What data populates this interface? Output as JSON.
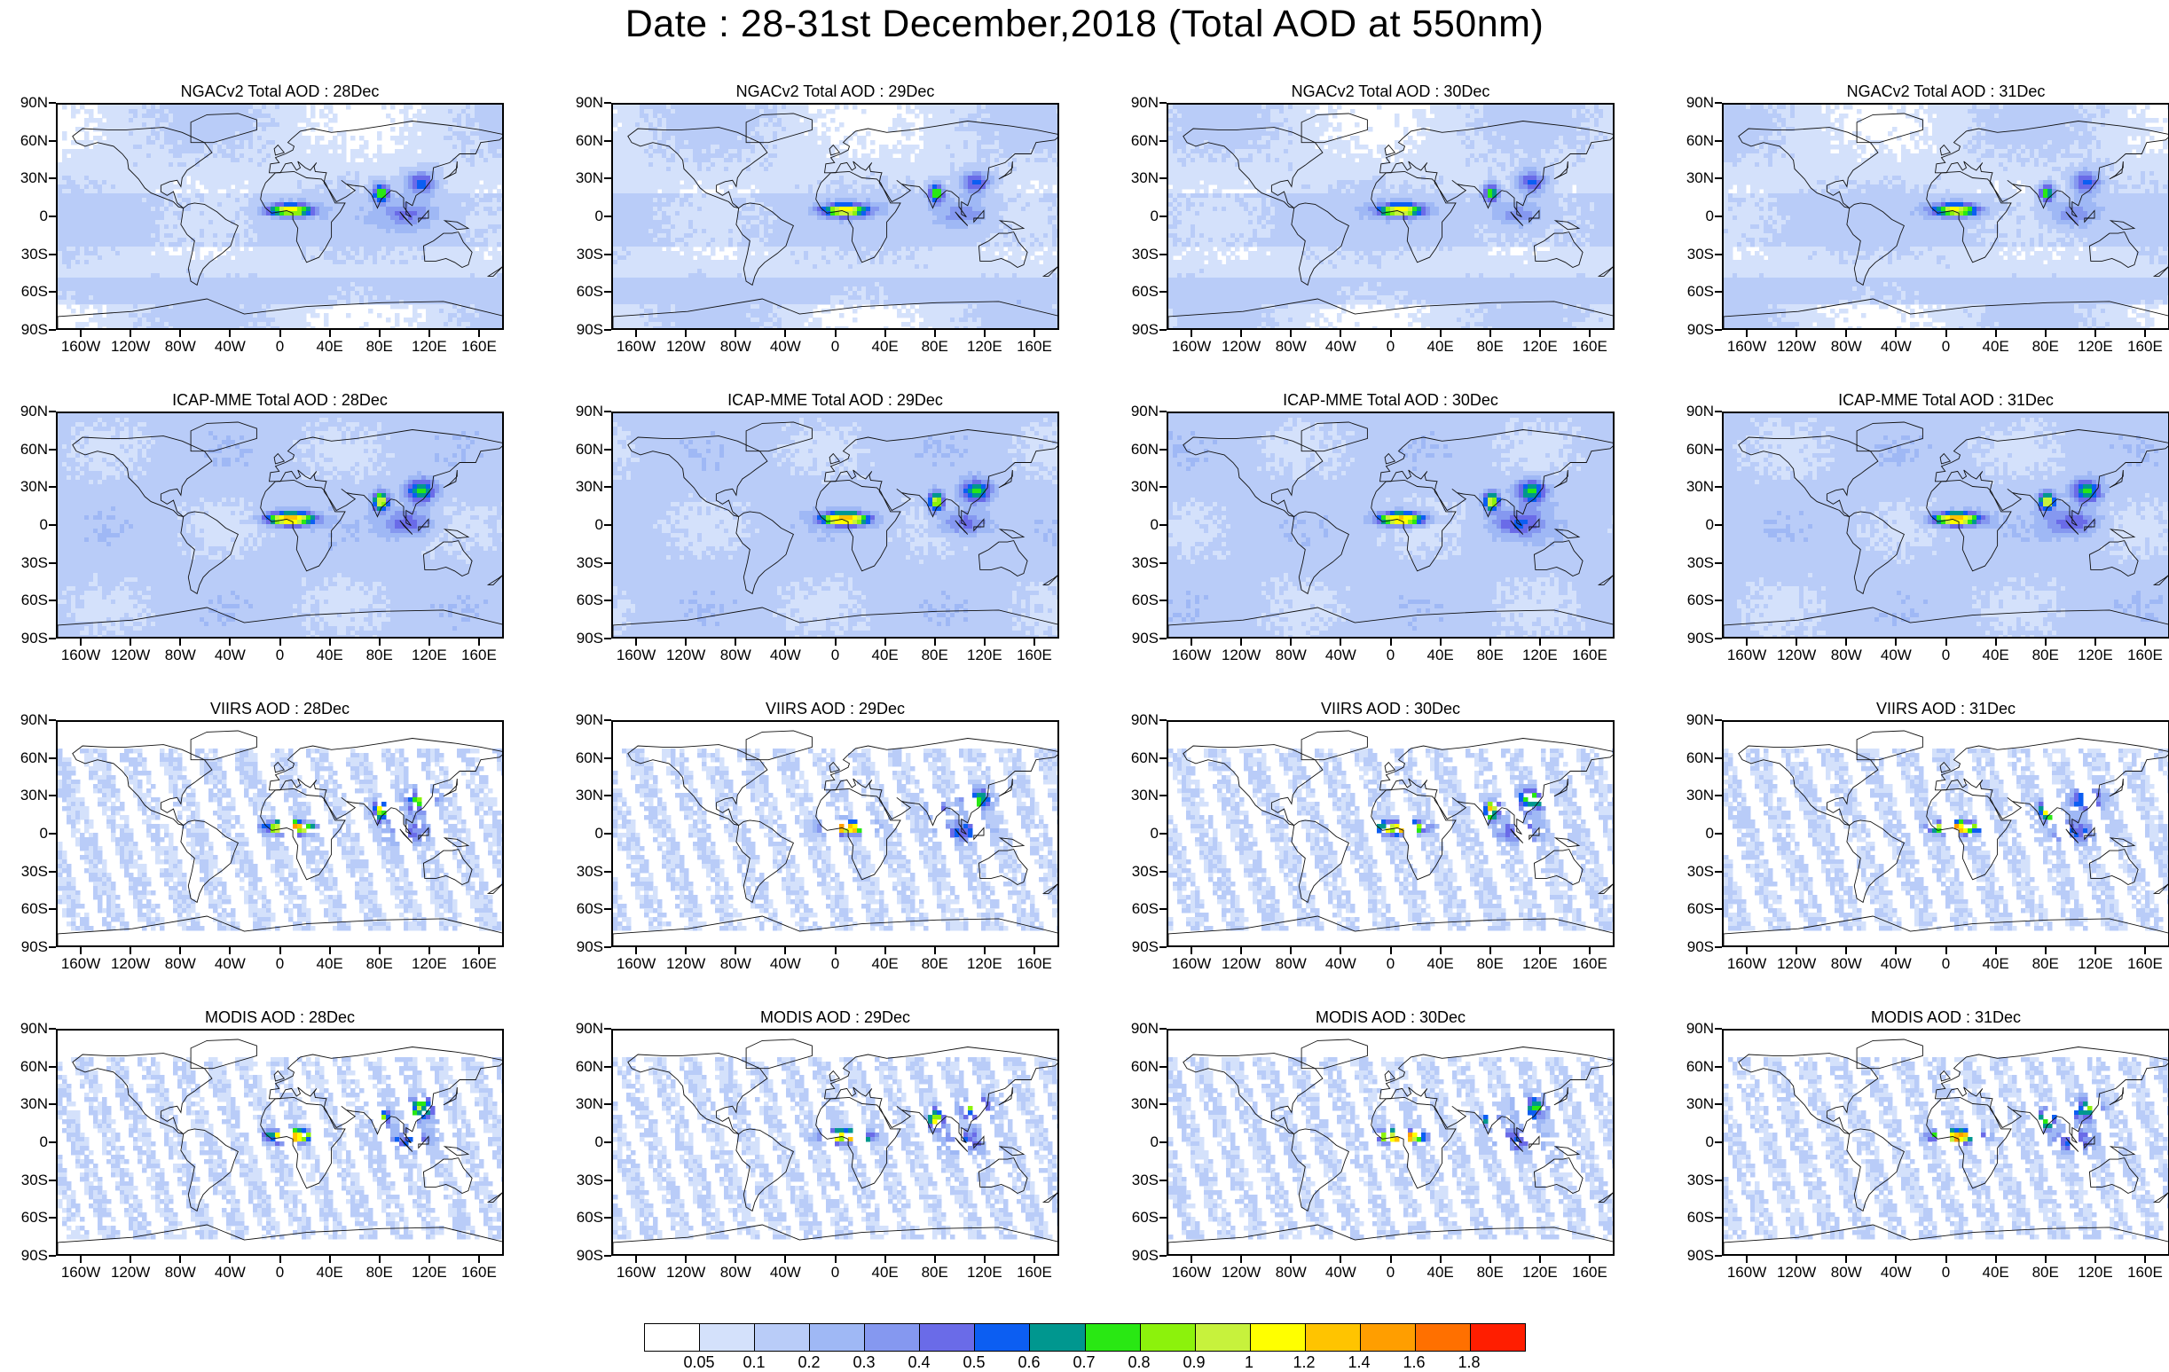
{
  "title": "Date : 28-31st December,2018 (Total AOD at 550nm)",
  "latitude_labels": [
    "90N",
    "60N",
    "30N",
    "0",
    "30S",
    "60S",
    "90S"
  ],
  "longitude_labels": [
    "160W",
    "120W",
    "80W",
    "40W",
    "0",
    "40E",
    "80E",
    "120E",
    "160E"
  ],
  "panel_titles": [
    [
      "NGACv2 Total AOD : 28Dec",
      "NGACv2 Total AOD : 29Dec",
      "NGACv2 Total AOD : 30Dec",
      "NGACv2 Total AOD : 31Dec"
    ],
    [
      "ICAP-MME Total AOD : 28Dec",
      "ICAP-MME Total AOD : 29Dec",
      "ICAP-MME Total AOD : 30Dec",
      "ICAP-MME Total AOD : 31Dec"
    ],
    [
      "VIIRS AOD : 28Dec",
      "VIIRS AOD : 29Dec",
      "VIIRS AOD : 30Dec",
      "VIIRS AOD : 31Dec"
    ],
    [
      "MODIS AOD : 28Dec",
      "MODIS AOD : 29Dec",
      "MODIS AOD : 30Dec",
      "MODIS AOD : 31Dec"
    ]
  ],
  "colorbar": {
    "labels": [
      "0.05",
      "0.1",
      "0.2",
      "0.3",
      "0.4",
      "0.5",
      "0.6",
      "0.7",
      "0.8",
      "0.9",
      "1",
      "1.2",
      "1.4",
      "1.6",
      "1.8"
    ],
    "colors": [
      "#ffffff",
      "#d4e1fb",
      "#b9ccf8",
      "#9fb8f5",
      "#8598f0",
      "#6a6be8",
      "#0c5ef2",
      "#00978f",
      "#29e813",
      "#8cf20c",
      "#c7f23c",
      "#ffff00",
      "#ffc400",
      "#ff9e00",
      "#ff7000",
      "#ff1e00"
    ]
  }
}
